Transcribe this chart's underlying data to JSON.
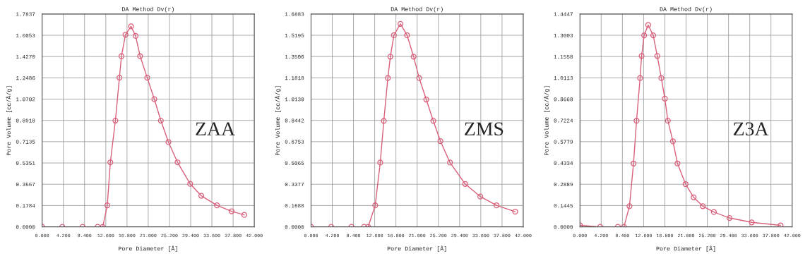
{
  "chart_data": [
    {
      "type": "line",
      "title": "DA Method Dv(r)",
      "xlabel": "Pore Diameter [Å]",
      "ylabel": "Pore Volume [cc/Å/g]",
      "annotations": [
        "ZAA"
      ],
      "series": [
        {
          "color": "#d9607a",
          "x": [
            0.0,
            4.0,
            8.0,
            11.0,
            12.0,
            12.9,
            13.5,
            14.5,
            15.3,
            15.7,
            16.5,
            17.6,
            18.5,
            19.4,
            20.8,
            22.2,
            23.5,
            25.0,
            26.8,
            29.3,
            31.5,
            34.6,
            37.5,
            40.0
          ],
          "values": [
            0.0,
            0.0,
            0.0,
            0.0,
            0.0,
            0.18,
            0.54,
            0.89,
            1.25,
            1.43,
            1.61,
            1.68,
            1.6,
            1.43,
            1.25,
            1.07,
            0.89,
            0.71,
            0.54,
            0.36,
            0.26,
            0.18,
            0.13,
            0.1
          ]
        }
      ],
      "xlim": [
        0,
        42
      ],
      "xticks": [
        {
          "value": 0,
          "label": "0.000"
        },
        {
          "value": 4.2,
          "label": "4.200"
        },
        {
          "value": 8.4,
          "label": "8.400"
        },
        {
          "value": 12.6,
          "label": "12.600"
        },
        {
          "value": 16.8,
          "label": "16.800"
        },
        {
          "value": 21,
          "label": "21.000"
        },
        {
          "value": 25.2,
          "label": "25.200"
        },
        {
          "value": 29.4,
          "label": "29.400"
        },
        {
          "value": 33.6,
          "label": "33.600"
        },
        {
          "value": 37.8,
          "label": "37.800"
        },
        {
          "value": 42,
          "label": "42.000"
        }
      ],
      "ylim": [
        0,
        1.7837
      ],
      "yticks": [
        {
          "value": 0,
          "label": "0.0000"
        },
        0.1784,
        0.3567,
        0.5351,
        0.7135,
        0.8918,
        1.0702,
        1.2486,
        {
          "value": 1.427,
          "label": "1.4270"
        },
        1.6053,
        1.7837
      ],
      "grid": true,
      "marker": "circle",
      "line_style": "solid",
      "legend": false
    },
    {
      "type": "line",
      "title": "DA Method Dv(r)",
      "xlabel": "Pore Diameter [Å]",
      "ylabel": "Pore Volume [cc/Å/g]",
      "annotations": [
        "ZMS"
      ],
      "series": [
        {
          "color": "#d9607a",
          "x": [
            0.0,
            4.0,
            8.0,
            10.5,
            11.3,
            12.7,
            13.7,
            14.4,
            15.2,
            15.7,
            16.4,
            17.7,
            19.0,
            20.3,
            21.4,
            22.8,
            24.2,
            25.6,
            27.5,
            30.5,
            33.5,
            36.7,
            40.4
          ],
          "values": [
            0.0,
            0.0,
            0.0,
            0.0,
            0.0,
            0.17,
            0.51,
            0.84,
            1.18,
            1.35,
            1.52,
            1.61,
            1.52,
            1.35,
            1.18,
            1.01,
            0.84,
            0.68,
            0.51,
            0.34,
            0.24,
            0.17,
            0.12
          ]
        }
      ],
      "xlim": [
        0,
        42
      ],
      "xticks": [
        {
          "value": 0,
          "label": "0.000"
        },
        {
          "value": 4.2,
          "label": "4.200"
        },
        {
          "value": 8.4,
          "label": "8.400"
        },
        {
          "value": 12.6,
          "label": "12.600"
        },
        {
          "value": 16.8,
          "label": "16.800"
        },
        {
          "value": 21,
          "label": "21.000"
        },
        {
          "value": 25.2,
          "label": "25.200"
        },
        {
          "value": 29.4,
          "label": "29.400"
        },
        {
          "value": 33.6,
          "label": "33.600"
        },
        {
          "value": 37.8,
          "label": "37.800"
        },
        {
          "value": 42,
          "label": "42.000"
        }
      ],
      "ylim": [
        0,
        1.6883
      ],
      "yticks": [
        {
          "value": 0,
          "label": "0.0000"
        },
        0.1688,
        0.3377,
        0.5065,
        0.6753,
        0.8442,
        {
          "value": 1.013,
          "label": "1.0130"
        },
        1.1818,
        1.3506,
        1.5195,
        1.6883
      ],
      "grid": true,
      "marker": "circle",
      "line_style": "solid",
      "legend": false
    },
    {
      "type": "line",
      "title": "DA Method Dv(r)",
      "xlabel": "Pore Diameter [Å]",
      "ylabel": "Pore Volume [cc/Å/g]",
      "annotations": [
        "Z3A"
      ],
      "series": [
        {
          "color": "#d9607a",
          "x": [
            0.0,
            4.0,
            7.5,
            8.7,
            9.8,
            10.6,
            11.2,
            11.9,
            12.2,
            12.7,
            13.5,
            14.5,
            15.3,
            16.1,
            16.8,
            17.4,
            18.4,
            19.3,
            20.9,
            22.5,
            24.3,
            26.5,
            29.6,
            34.0,
            39.7
          ],
          "values": [
            0.01,
            0.0,
            0.0,
            0.0,
            0.14,
            0.43,
            0.72,
            1.01,
            1.16,
            1.3,
            1.37,
            1.3,
            1.16,
            1.01,
            0.87,
            0.72,
            0.58,
            0.43,
            0.29,
            0.2,
            0.14,
            0.1,
            0.06,
            0.03,
            0.01
          ]
        }
      ],
      "xlim": [
        0,
        42
      ],
      "xticks": [
        {
          "value": 0,
          "label": "0.000"
        },
        {
          "value": 4.2,
          "label": "4.200"
        },
        {
          "value": 8.4,
          "label": "8.400"
        },
        {
          "value": 12.6,
          "label": "12.600"
        },
        {
          "value": 16.8,
          "label": "16.800"
        },
        {
          "value": 21,
          "label": "21.000"
        },
        {
          "value": 25.2,
          "label": "25.200"
        },
        {
          "value": 29.4,
          "label": "29.400"
        },
        {
          "value": 33.6,
          "label": "33.600"
        },
        {
          "value": 37.8,
          "label": "37.800"
        },
        {
          "value": 42,
          "label": "42.000"
        }
      ],
      "ylim": [
        0,
        1.4447
      ],
      "yticks": [
        {
          "value": 0,
          "label": "0.0000"
        },
        0.1445,
        0.2889,
        0.4334,
        0.5779,
        0.7224,
        0.8668,
        1.0113,
        1.1558,
        1.3003,
        1.4447
      ],
      "grid": true,
      "marker": "circle",
      "line_style": "solid",
      "legend": false
    }
  ]
}
